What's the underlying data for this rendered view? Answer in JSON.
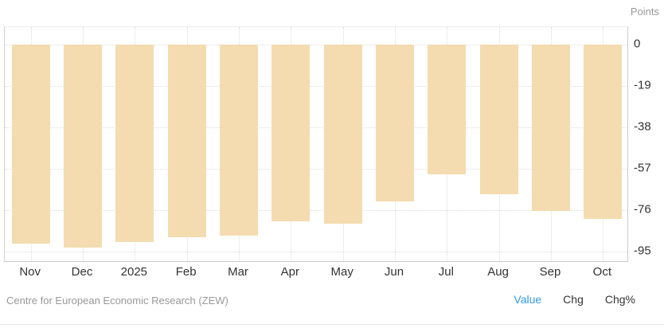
{
  "header": {
    "unit_label": "Points"
  },
  "chart_data": {
    "type": "bar",
    "title": "",
    "xlabel": "",
    "ylabel": "Points",
    "categories": [
      "Nov",
      "Dec",
      "2025",
      "Feb",
      "Mar",
      "Apr",
      "May",
      "Jun",
      "Jul",
      "Aug",
      "Sep",
      "Oct"
    ],
    "values": [
      -91.4,
      -93.1,
      -90.4,
      -88.5,
      -87.6,
      -81.2,
      -82.0,
      -72.0,
      -59.5,
      -68.6,
      -76.4,
      -80.0
    ],
    "yticks": [
      0,
      -19,
      -38,
      -57,
      -76,
      -95
    ],
    "ylim": [
      -100,
      8
    ],
    "grid": "dotted",
    "legend_position": "none",
    "bar_color": "#f4dcb0"
  },
  "footer": {
    "source": "Centre for European Economic Research (ZEW)",
    "tabs": [
      {
        "label": "Value",
        "active": true
      },
      {
        "label": "Chg",
        "active": false
      },
      {
        "label": "Chg%",
        "active": false
      }
    ]
  },
  "colors": {
    "bar": "#f4dcb0",
    "active_tab": "#3399ea",
    "axis_text": "#333333",
    "muted_text": "#999999",
    "grid": "#dcdcdc",
    "border": "#cccccc"
  }
}
